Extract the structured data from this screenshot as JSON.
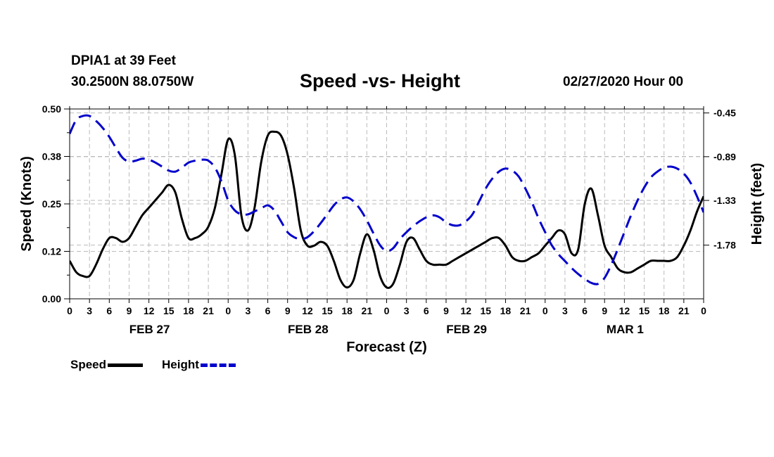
{
  "header": {
    "station": "DPIA1 at 39 Feet",
    "coords": "30.2500N 88.0750W",
    "title": "Speed -vs- Height",
    "date": "02/27/2020 Hour 00"
  },
  "legend": {
    "speed": "Speed",
    "height": "Height"
  },
  "colors": {
    "speed": "#000000",
    "height": "#0000cc",
    "grid": "#bbbbbb"
  },
  "chart_data": {
    "type": "line",
    "title": "Speed -vs- Height",
    "xlabel": "Forecast (Z)",
    "ylabel": "Speed (Knots)",
    "y2label": "Height (feet)",
    "xlim": [
      0,
      96
    ],
    "ylim": [
      0,
      0.5
    ],
    "y2lim": [
      -0.41,
      -2.32
    ],
    "yticks": [
      "0.00",
      "0.12",
      "0.25",
      "0.38",
      "0.50"
    ],
    "y2ticks": [
      {
        "value": -0.45,
        "label": "-0.45"
      },
      {
        "value": -0.89,
        "label": "-0.89"
      },
      {
        "value": -1.33,
        "label": "-1.33"
      },
      {
        "value": -1.78,
        "label": "-1.78"
      }
    ],
    "xticks": [
      "0",
      "3",
      "6",
      "9",
      "12",
      "15",
      "18",
      "21",
      "0",
      "3",
      "6",
      "9",
      "12",
      "15",
      "18",
      "21",
      "0",
      "3",
      "6",
      "9",
      "12",
      "15",
      "18",
      "21",
      "0",
      "3",
      "6",
      "9",
      "12",
      "15",
      "18",
      "21",
      "0"
    ],
    "day_labels": [
      {
        "hour": 12,
        "label": "FEB 27"
      },
      {
        "hour": 36,
        "label": "FEB 28"
      },
      {
        "hour": 60,
        "label": "FEB 29"
      },
      {
        "hour": 84,
        "label": "MAR 1"
      }
    ],
    "series": [
      {
        "name": "Speed",
        "axis": "left",
        "style": "solid",
        "x": [
          0,
          1,
          2,
          3,
          4,
          5,
          6,
          7,
          8,
          9,
          10,
          11,
          12,
          13,
          14,
          15,
          16,
          17,
          18,
          19,
          20,
          21,
          22,
          23,
          24,
          25,
          26,
          27,
          28,
          29,
          30,
          31,
          32,
          33,
          34,
          35,
          36,
          37,
          38,
          39,
          40,
          41,
          42,
          43,
          44,
          45,
          46,
          47,
          48,
          49,
          50,
          51,
          52,
          53,
          54,
          55,
          56,
          57,
          58,
          59,
          60,
          61,
          62,
          63,
          64,
          65,
          66,
          67,
          68,
          69,
          70,
          71,
          72,
          73,
          74,
          75,
          76,
          77,
          78,
          79,
          80,
          81,
          82,
          83,
          84,
          85,
          86,
          87,
          88,
          89,
          90,
          91,
          92,
          93,
          94,
          95,
          96
        ],
        "values": [
          0.1,
          0.07,
          0.06,
          0.06,
          0.09,
          0.13,
          0.16,
          0.16,
          0.15,
          0.16,
          0.19,
          0.22,
          0.24,
          0.26,
          0.28,
          0.3,
          0.28,
          0.21,
          0.16,
          0.16,
          0.17,
          0.19,
          0.24,
          0.33,
          0.42,
          0.38,
          0.22,
          0.18,
          0.24,
          0.36,
          0.43,
          0.44,
          0.43,
          0.38,
          0.29,
          0.18,
          0.14,
          0.14,
          0.15,
          0.14,
          0.1,
          0.05,
          0.03,
          0.05,
          0.12,
          0.17,
          0.13,
          0.06,
          0.03,
          0.04,
          0.09,
          0.15,
          0.16,
          0.13,
          0.1,
          0.09,
          0.09,
          0.09,
          0.1,
          0.11,
          0.12,
          0.13,
          0.14,
          0.15,
          0.16,
          0.16,
          0.14,
          0.11,
          0.1,
          0.1,
          0.11,
          0.12,
          0.14,
          0.16,
          0.18,
          0.17,
          0.12,
          0.13,
          0.25,
          0.29,
          0.22,
          0.14,
          0.11,
          0.08,
          0.07,
          0.07,
          0.08,
          0.09,
          0.1,
          0.1,
          0.1,
          0.1,
          0.11,
          0.14,
          0.18,
          0.23,
          0.27
        ]
      },
      {
        "name": "Height",
        "axis": "right",
        "style": "dashed",
        "x": [
          0,
          1,
          2,
          3,
          4,
          5,
          6,
          7,
          8,
          9,
          10,
          11,
          12,
          13,
          14,
          15,
          16,
          17,
          18,
          19,
          20,
          21,
          22,
          23,
          24,
          25,
          26,
          27,
          28,
          29,
          30,
          31,
          32,
          33,
          34,
          35,
          36,
          37,
          38,
          39,
          40,
          41,
          42,
          43,
          44,
          45,
          46,
          47,
          48,
          49,
          50,
          51,
          52,
          53,
          54,
          55,
          56,
          57,
          58,
          59,
          60,
          61,
          62,
          63,
          64,
          65,
          66,
          67,
          68,
          69,
          70,
          71,
          72,
          73,
          74,
          75,
          76,
          77,
          78,
          79,
          80,
          81,
          82,
          83,
          84,
          85,
          86,
          87,
          88,
          89,
          90,
          91,
          92,
          93,
          94,
          95,
          96
        ],
        "values": [
          -0.66,
          -0.52,
          -0.48,
          -0.48,
          -0.53,
          -0.6,
          -0.69,
          -0.8,
          -0.9,
          -0.94,
          -0.93,
          -0.91,
          -0.92,
          -0.95,
          -0.99,
          -1.03,
          -1.04,
          -1.0,
          -0.95,
          -0.93,
          -0.92,
          -0.93,
          -1.0,
          -1.14,
          -1.33,
          -1.43,
          -1.47,
          -1.47,
          -1.44,
          -1.41,
          -1.38,
          -1.43,
          -1.54,
          -1.65,
          -1.7,
          -1.72,
          -1.7,
          -1.64,
          -1.56,
          -1.47,
          -1.38,
          -1.32,
          -1.3,
          -1.34,
          -1.42,
          -1.53,
          -1.66,
          -1.78,
          -1.84,
          -1.81,
          -1.72,
          -1.65,
          -1.59,
          -1.54,
          -1.5,
          -1.48,
          -1.5,
          -1.55,
          -1.58,
          -1.58,
          -1.54,
          -1.47,
          -1.34,
          -1.21,
          -1.11,
          -1.04,
          -1.01,
          -1.03,
          -1.09,
          -1.21,
          -1.35,
          -1.51,
          -1.65,
          -1.78,
          -1.87,
          -1.94,
          -2.01,
          -2.07,
          -2.12,
          -2.16,
          -2.17,
          -2.11,
          -1.98,
          -1.82,
          -1.65,
          -1.48,
          -1.33,
          -1.2,
          -1.1,
          -1.04,
          -1.0,
          -0.99,
          -1.01,
          -1.06,
          -1.15,
          -1.29,
          -1.45
        ]
      }
    ]
  }
}
